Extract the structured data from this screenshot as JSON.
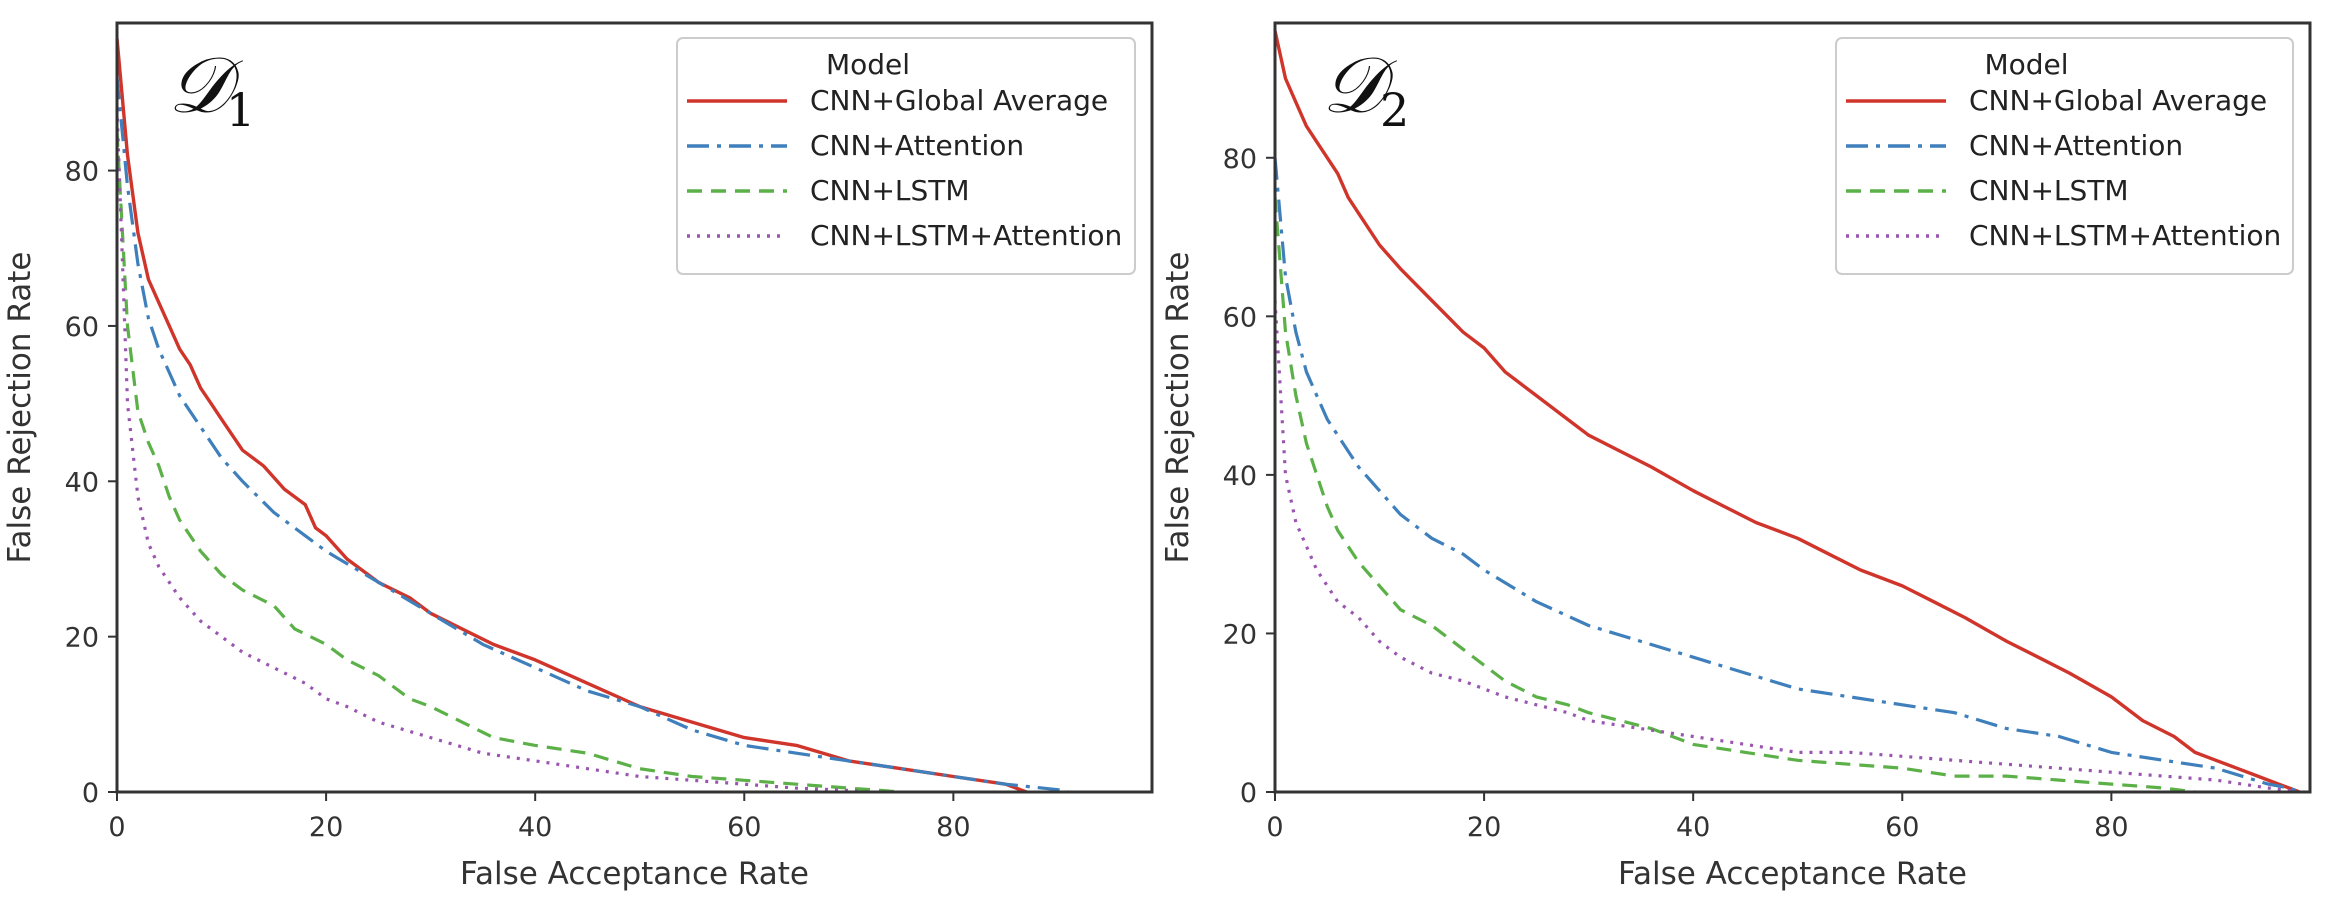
{
  "chart_data": [
    {
      "type": "line",
      "title": "𝒟",
      "title_subscript": "1",
      "xlabel": "False Acceptance Rate",
      "ylabel": "False Rejection Rate",
      "xlim": [
        0,
        99
      ],
      "ylim": [
        0,
        99
      ],
      "xticks": [
        "0",
        "20",
        "40",
        "60",
        "80"
      ],
      "yticks": [
        "0",
        "20",
        "40",
        "60",
        "80"
      ],
      "legend_title": "Model",
      "legend_position": "top-right",
      "series": [
        {
          "name": "CNN+Global Average",
          "color": "#d0352b",
          "dash": "solid",
          "x": [
            0,
            1,
            2,
            3,
            4,
            5,
            6,
            7,
            8,
            9,
            10,
            12,
            14,
            16,
            18,
            19,
            20,
            22,
            25,
            28,
            30,
            33,
            36,
            40,
            45,
            50,
            55,
            60,
            65,
            70,
            75,
            80,
            85,
            87
          ],
          "y": [
            97,
            82,
            72,
            66,
            63,
            60,
            57,
            55,
            52,
            50,
            48,
            44,
            42,
            39,
            37,
            34,
            33,
            30,
            27,
            25,
            23,
            21,
            19,
            17,
            14,
            11,
            9,
            7,
            6,
            4,
            3,
            2,
            1,
            0
          ]
        },
        {
          "name": "CNN+Attention",
          "color": "#3e7fbc",
          "dash": "dashdot",
          "x": [
            0,
            1,
            2,
            3,
            4,
            5,
            6,
            8,
            10,
            12,
            15,
            18,
            20,
            25,
            30,
            35,
            40,
            45,
            50,
            55,
            60,
            65,
            70,
            75,
            80,
            85,
            90,
            91
          ],
          "y": [
            92,
            78,
            68,
            61,
            57,
            54,
            51,
            47,
            43,
            40,
            36,
            33,
            31,
            27,
            23,
            19,
            16,
            13,
            11,
            8,
            6,
            5,
            4,
            3,
            2,
            1,
            0.3,
            0
          ]
        },
        {
          "name": "CNN+LSTM",
          "color": "#5cb048",
          "dash": "dashed",
          "x": [
            0,
            1,
            2,
            3,
            4,
            5,
            6,
            8,
            10,
            12,
            15,
            17,
            20,
            22,
            25,
            28,
            30,
            33,
            36,
            40,
            45,
            50,
            55,
            60,
            65,
            70,
            73,
            75
          ],
          "y": [
            85,
            60,
            49,
            45,
            42,
            38,
            35,
            31,
            28,
            26,
            24,
            21,
            19,
            17,
            15,
            12,
            11,
            9,
            7,
            6,
            5,
            3,
            2,
            1.5,
            1,
            0.5,
            0.2,
            0
          ]
        },
        {
          "name": "CNN+LSTM+Attention",
          "color": "#9a55b0",
          "dash": "dotted",
          "x": [
            0,
            1,
            2,
            3,
            4,
            5,
            6,
            8,
            10,
            12,
            15,
            18,
            20,
            22,
            25,
            30,
            35,
            40,
            45,
            50,
            55,
            60,
            65,
            70,
            72
          ],
          "y": [
            88,
            50,
            38,
            32,
            29,
            27,
            25,
            22,
            20,
            18,
            16,
            14,
            12,
            11,
            9,
            7,
            5,
            4,
            3,
            2,
            1.5,
            1,
            0.5,
            0.2,
            0
          ]
        }
      ]
    },
    {
      "type": "line",
      "title": "𝒟",
      "title_subscript": "2",
      "xlabel": "False Acceptance Rate",
      "ylabel": "False Rejection Rate",
      "xlim": [
        0,
        99
      ],
      "ylim": [
        0,
        97
      ],
      "xticks": [
        "0",
        "20",
        "40",
        "60",
        "80"
      ],
      "yticks": [
        "0",
        "20",
        "40",
        "60",
        "80"
      ],
      "legend_title": "Model",
      "legend_position": "top-right",
      "series": [
        {
          "name": "CNN+Global Average",
          "color": "#d0352b",
          "dash": "solid",
          "x": [
            0,
            1,
            2,
            3,
            4,
            5,
            6,
            7,
            8,
            10,
            12,
            15,
            18,
            20,
            22,
            25,
            28,
            30,
            33,
            36,
            40,
            43,
            46,
            50,
            53,
            56,
            60,
            63,
            66,
            70,
            73,
            76,
            80,
            83,
            86,
            88,
            90,
            92,
            94,
            96,
            97,
            98
          ],
          "y": [
            96,
            90,
            87,
            84,
            82,
            80,
            78,
            75,
            73,
            69,
            66,
            62,
            58,
            56,
            53,
            50,
            47,
            45,
            43,
            41,
            38,
            36,
            34,
            32,
            30,
            28,
            26,
            24,
            22,
            19,
            17,
            15,
            12,
            9,
            7,
            5,
            4,
            3,
            2,
            1,
            0.5,
            0
          ]
        },
        {
          "name": "CNN+Attention",
          "color": "#3e7fbc",
          "dash": "dashdot",
          "x": [
            0,
            1,
            2,
            3,
            4,
            5,
            6,
            8,
            10,
            12,
            15,
            18,
            20,
            25,
            30,
            35,
            40,
            45,
            50,
            55,
            60,
            65,
            70,
            75,
            80,
            85,
            90,
            95,
            97,
            98
          ],
          "y": [
            80,
            65,
            58,
            53,
            50,
            47,
            45,
            41,
            38,
            35,
            32,
            30,
            28,
            24,
            21,
            19,
            17,
            15,
            13,
            12,
            11,
            10,
            8,
            7,
            5,
            4,
            3,
            1,
            0.5,
            0
          ]
        },
        {
          "name": "CNN+LSTM",
          "color": "#5cb048",
          "dash": "dashed",
          "x": [
            0,
            1,
            2,
            3,
            4,
            5,
            6,
            8,
            10,
            12,
            15,
            18,
            20,
            22,
            25,
            28,
            30,
            33,
            36,
            40,
            45,
            50,
            55,
            60,
            65,
            70,
            75,
            80,
            85,
            88
          ],
          "y": [
            75,
            58,
            50,
            44,
            40,
            36,
            33,
            29,
            26,
            23,
            21,
            18,
            16,
            14,
            12,
            11,
            10,
            9,
            8,
            6,
            5,
            4,
            3.5,
            3,
            2,
            2,
            1.5,
            1,
            0.5,
            0
          ]
        },
        {
          "name": "CNN+LSTM+Attention",
          "color": "#9a55b0",
          "dash": "dotted",
          "x": [
            0,
            1,
            2,
            3,
            4,
            5,
            6,
            8,
            10,
            12,
            15,
            18,
            20,
            22,
            25,
            28,
            30,
            35,
            40,
            45,
            50,
            55,
            60,
            65,
            70,
            75,
            80,
            85,
            90,
            95,
            98
          ],
          "y": [
            62,
            40,
            34,
            31,
            28,
            26,
            24,
            22,
            19,
            17,
            15,
            14,
            13,
            12,
            11,
            10,
            9,
            8,
            7,
            6,
            5,
            5,
            4.5,
            4,
            3.5,
            3,
            2.5,
            2,
            1.5,
            0.5,
            0
          ]
        }
      ]
    }
  ]
}
